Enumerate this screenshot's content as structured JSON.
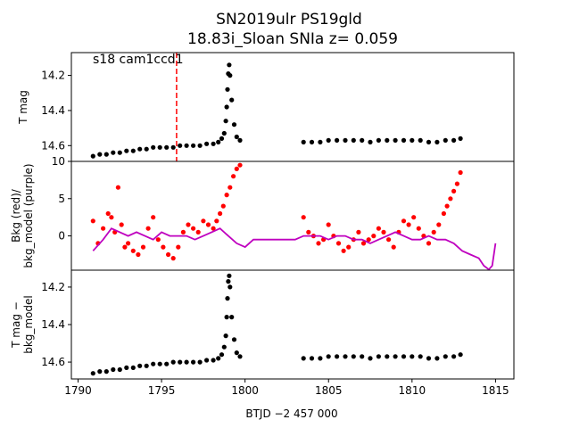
{
  "chart_data": {
    "type": "scatter",
    "title": "SN2019ulr  PS19gld",
    "subtitle": "18.83i_Sloan SNIa z= 0.059",
    "xlabel": "BTJD −2 457 000",
    "xlim": [
      1789.6,
      1816.1
    ],
    "x_ticks": [
      "1790",
      "1795",
      "1800",
      "1805",
      "1810",
      "1815"
    ],
    "x_tick_values": [
      1790,
      1795,
      1800,
      1805,
      1810,
      1815
    ],
    "colors": {
      "lightcurve": "#000000",
      "background": "#ff0000",
      "background_model": "#bf00bf",
      "marker": "#ff0000"
    },
    "panels": [
      {
        "id": "top",
        "ylabel": "T mag",
        "ylim": [
          14.69,
          14.07
        ],
        "y_ticks": [
          "14.2",
          "14.4",
          "14.6"
        ],
        "y_tick_values": [
          14.2,
          14.4,
          14.6
        ],
        "annotation": "s18 cam1ccd1",
        "vline_x": 1795.9,
        "series": [
          {
            "style": "points",
            "color": "#000000",
            "x": [
              1790.9,
              1791.3,
              1791.7,
              1792.1,
              1792.5,
              1792.9,
              1793.3,
              1793.7,
              1794.1,
              1794.5,
              1794.9,
              1795.3,
              1795.7,
              1796.1,
              1796.5,
              1796.9,
              1797.3,
              1797.7,
              1798.1,
              1798.4,
              1798.6,
              1798.75,
              1798.85,
              1798.9,
              1798.95,
              1799.0,
              1799.05,
              1799.1,
              1799.2,
              1799.35,
              1799.5,
              1799.7,
              1803.5,
              1804.0,
              1804.5,
              1805.0,
              1805.5,
              1806.0,
              1806.5,
              1807.0,
              1807.5,
              1808.0,
              1808.5,
              1809.0,
              1809.5,
              1810.0,
              1810.5,
              1811.0,
              1811.5,
              1812.0,
              1812.5,
              1812.9
            ],
            "y": [
              14.66,
              14.65,
              14.65,
              14.64,
              14.64,
              14.63,
              14.63,
              14.62,
              14.62,
              14.61,
              14.61,
              14.61,
              14.61,
              14.6,
              14.6,
              14.6,
              14.6,
              14.59,
              14.59,
              14.58,
              14.56,
              14.53,
              14.46,
              14.38,
              14.28,
              14.19,
              14.14,
              14.2,
              14.34,
              14.48,
              14.55,
              14.57,
              14.58,
              14.58,
              14.58,
              14.57,
              14.57,
              14.57,
              14.57,
              14.57,
              14.58,
              14.57,
              14.57,
              14.57,
              14.57,
              14.57,
              14.57,
              14.58,
              14.58,
              14.57,
              14.57,
              14.56
            ]
          }
        ]
      },
      {
        "id": "middle",
        "ylabel": "Bkg (red)/\nbkg_model (purple)",
        "ylim": [
          -4.6,
          10.0
        ],
        "y_ticks": [
          "0",
          "5",
          "10"
        ],
        "y_tick_values": [
          0,
          5,
          10
        ],
        "series": [
          {
            "style": "points",
            "color": "#ff0000",
            "x": [
              1790.9,
              1791.2,
              1791.5,
              1791.8,
              1792.0,
              1792.2,
              1792.4,
              1792.6,
              1792.8,
              1793.0,
              1793.3,
              1793.6,
              1793.9,
              1794.2,
              1794.5,
              1794.8,
              1795.1,
              1795.4,
              1795.7,
              1796.0,
              1796.3,
              1796.6,
              1796.9,
              1797.2,
              1797.5,
              1797.8,
              1798.1,
              1798.3,
              1798.5,
              1798.7,
              1798.9,
              1799.1,
              1799.3,
              1799.5,
              1799.7,
              1803.5,
              1803.8,
              1804.1,
              1804.4,
              1804.7,
              1805.0,
              1805.3,
              1805.6,
              1805.9,
              1806.2,
              1806.5,
              1806.8,
              1807.1,
              1807.4,
              1807.7,
              1808.0,
              1808.3,
              1808.6,
              1808.9,
              1809.2,
              1809.5,
              1809.8,
              1810.1,
              1810.4,
              1810.7,
              1811.0,
              1811.3,
              1811.6,
              1811.9,
              1812.1,
              1812.3,
              1812.5,
              1812.7,
              1812.9
            ],
            "y": [
              2.0,
              -1.0,
              1.0,
              3.0,
              2.5,
              0.5,
              6.5,
              1.5,
              -1.5,
              -1.0,
              -2.0,
              -2.5,
              -1.5,
              1.0,
              2.5,
              -0.5,
              -1.5,
              -2.5,
              -3.0,
              -1.5,
              0.5,
              1.5,
              1.0,
              0.5,
              2.0,
              1.5,
              1.0,
              2.0,
              3.0,
              4.0,
              5.5,
              6.5,
              8.0,
              9.0,
              9.5,
              2.5,
              0.5,
              0.0,
              -1.0,
              -0.5,
              1.5,
              0.0,
              -1.0,
              -2.0,
              -1.5,
              -0.5,
              0.5,
              -1.0,
              -0.5,
              0.0,
              1.0,
              0.5,
              -0.5,
              -1.5,
              0.5,
              2.0,
              1.5,
              2.5,
              1.0,
              0.0,
              -1.0,
              0.5,
              1.5,
              3.0,
              4.0,
              5.0,
              6.0,
              7.0,
              8.5
            ]
          },
          {
            "style": "line",
            "color": "#bf00bf",
            "x": [
              1790.9,
              1791.5,
              1792.0,
              1792.5,
              1793.0,
              1793.5,
              1794.0,
              1794.5,
              1795.0,
              1795.5,
              1796.0,
              1796.5,
              1797.0,
              1797.5,
              1798.0,
              1798.5,
              1799.0,
              1799.5,
              1800.0,
              1800.5,
              1801.0,
              1801.5,
              1802.0,
              1802.5,
              1803.0,
              1803.5,
              1804.0,
              1804.5,
              1805.0,
              1805.5,
              1806.0,
              1806.5,
              1807.0,
              1807.5,
              1808.0,
              1808.5,
              1809.0,
              1809.5,
              1810.0,
              1810.5,
              1811.0,
              1811.5,
              1812.0,
              1812.5,
              1813.0,
              1813.5,
              1814.0,
              1814.3,
              1814.6,
              1814.8,
              1815.0
            ],
            "y": [
              -2.0,
              -0.5,
              1.0,
              0.5,
              0.0,
              0.5,
              0.0,
              -0.5,
              0.5,
              0.0,
              0.0,
              0.0,
              -0.5,
              0.0,
              0.5,
              1.0,
              0.0,
              -1.0,
              -1.5,
              -0.5,
              -0.5,
              -0.5,
              -0.5,
              -0.5,
              -0.5,
              0.0,
              0.0,
              0.0,
              -0.5,
              0.0,
              0.0,
              -0.5,
              -0.5,
              -1.0,
              -0.5,
              0.0,
              0.5,
              0.0,
              -0.5,
              -0.5,
              0.0,
              -0.5,
              -0.5,
              -1.0,
              -2.0,
              -2.5,
              -3.0,
              -4.0,
              -4.5,
              -4.0,
              -1.0
            ]
          }
        ]
      },
      {
        "id": "bottom",
        "ylabel": "T mag −\nbkg_model",
        "ylim": [
          14.69,
          14.11
        ],
        "y_ticks": [
          "14.2",
          "14.4",
          "14.6"
        ],
        "y_tick_values": [
          14.2,
          14.4,
          14.6
        ],
        "series": [
          {
            "style": "points",
            "color": "#000000",
            "x": [
              1790.9,
              1791.3,
              1791.7,
              1792.1,
              1792.5,
              1792.9,
              1793.3,
              1793.7,
              1794.1,
              1794.5,
              1794.9,
              1795.3,
              1795.7,
              1796.1,
              1796.5,
              1796.9,
              1797.3,
              1797.7,
              1798.1,
              1798.4,
              1798.6,
              1798.75,
              1798.85,
              1798.9,
              1798.95,
              1799.0,
              1799.05,
              1799.1,
              1799.2,
              1799.35,
              1799.5,
              1799.7,
              1803.5,
              1804.0,
              1804.5,
              1805.0,
              1805.5,
              1806.0,
              1806.5,
              1807.0,
              1807.5,
              1808.0,
              1808.5,
              1809.0,
              1809.5,
              1810.0,
              1810.5,
              1811.0,
              1811.5,
              1812.0,
              1812.5,
              1812.9
            ],
            "y": [
              14.66,
              14.65,
              14.65,
              14.64,
              14.64,
              14.63,
              14.63,
              14.62,
              14.62,
              14.61,
              14.61,
              14.61,
              14.6,
              14.6,
              14.6,
              14.6,
              14.6,
              14.59,
              14.59,
              14.58,
              14.56,
              14.52,
              14.46,
              14.36,
              14.26,
              14.17,
              14.14,
              14.2,
              14.36,
              14.48,
              14.55,
              14.57,
              14.58,
              14.58,
              14.58,
              14.57,
              14.57,
              14.57,
              14.57,
              14.57,
              14.58,
              14.57,
              14.57,
              14.57,
              14.57,
              14.57,
              14.57,
              14.58,
              14.58,
              14.57,
              14.57,
              14.56
            ]
          }
        ]
      }
    ]
  }
}
